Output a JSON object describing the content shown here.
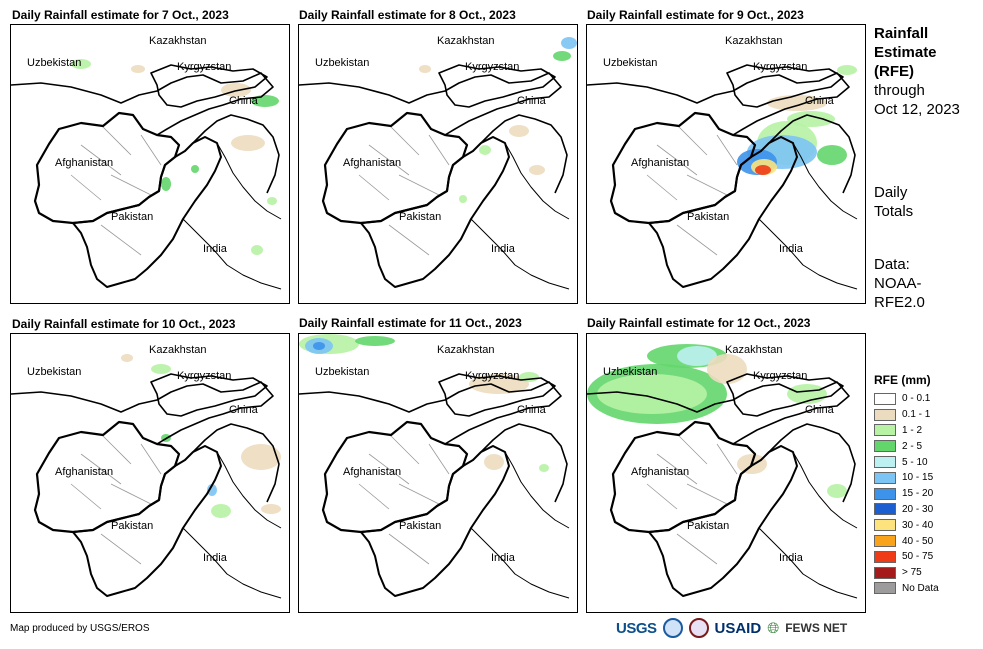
{
  "panels": [
    {
      "title": "Daily Rainfall estimate for 7 Oct., 2023",
      "labels": {
        "kazakhstan": "Kazakhstan",
        "kyrgyzstan": "Kyrgyzstan",
        "uzbekistan": "Uzbekistan",
        "china": "China",
        "afghanistan": "Afghanistan",
        "pakistan": "Pakistan",
        "india": "India"
      }
    },
    {
      "title": "Daily Rainfall estimate for 8 Oct., 2023",
      "labels": {
        "kazakhstan": "Kazakhstan",
        "kyrgyzstan": "Kyrgyzstan",
        "uzbekistan": "Uzbekistan",
        "china": "China",
        "afghanistan": "Afghanistan",
        "pakistan": "Pakistan",
        "india": "India"
      }
    },
    {
      "title": "Daily Rainfall estimate for 9 Oct., 2023",
      "labels": {
        "kazakhstan": "Kazakhstan",
        "kyrgyzstan": "Kyrgyzstan",
        "uzbekistan": "Uzbekistan",
        "china": "China",
        "afghanistan": "Afghanistan",
        "pakistan": "Pakistan",
        "india": "India"
      }
    },
    {
      "title": "Daily Rainfall estimate for 10 Oct., 2023",
      "labels": {
        "kazakhstan": "Kazakhstan",
        "kyrgyzstan": "Kyrgyzstan",
        "uzbekistan": "Uzbekistan",
        "china": "China",
        "afghanistan": "Afghanistan",
        "pakistan": "Pakistan",
        "india": "India"
      }
    },
    {
      "title": "Daily Rainfall estimate for 11 Oct., 2023",
      "labels": {
        "kazakhstan": "Kazakhstan",
        "kyrgyzstan": "Kyrgyzstan",
        "uzbekistan": "Uzbekistan",
        "china": "China",
        "afghanistan": "Afghanistan",
        "pakistan": "Pakistan",
        "india": "India"
      }
    },
    {
      "title": "Daily Rainfall estimate for 12 Oct., 2023",
      "labels": {
        "kazakhstan": "Kazakhstan",
        "kyrgyzstan": "Kyrgyzstan",
        "uzbekistan": "Uzbekistan",
        "china": "China",
        "afghanistan": "Afghanistan",
        "pakistan": "Pakistan",
        "india": "India"
      }
    }
  ],
  "side": {
    "title_lines": [
      "Rainfall",
      "Estimate",
      "(RFE)"
    ],
    "subtitle_lines": [
      "through",
      "Oct 12, 2023"
    ],
    "totals_lines": [
      "Daily",
      "Totals"
    ],
    "data_lines": [
      "Data:",
      "NOAA-",
      "RFE2.0"
    ]
  },
  "legend": {
    "title": "RFE (mm)",
    "items": [
      {
        "label": "0 - 0.1",
        "color": "#ffffff"
      },
      {
        "label": "0.1 - 1",
        "color": "#ecdcbf"
      },
      {
        "label": "1 - 2",
        "color": "#b7f2a5"
      },
      {
        "label": "2 - 5",
        "color": "#63d66b"
      },
      {
        "label": "5 - 10",
        "color": "#bdf0f0"
      },
      {
        "label": "10 - 15",
        "color": "#7cc4f4"
      },
      {
        "label": "15 - 20",
        "color": "#3d92ea"
      },
      {
        "label": "20 - 30",
        "color": "#1c5fd1"
      },
      {
        "label": "30 - 40",
        "color": "#fce37e"
      },
      {
        "label": "40 - 50",
        "color": "#f9a21b"
      },
      {
        "label": "50 - 75",
        "color": "#ef3b17"
      },
      {
        "label": "> 75",
        "color": "#a51a1a"
      },
      {
        "label": "No Data",
        "color": "#9c9c9c"
      }
    ]
  },
  "footer": {
    "credit": "Map produced by USGS/EROS",
    "logos": {
      "usgs": "USGS",
      "usaid": "USAID",
      "fews": "FEWS NET"
    },
    "logo_icons": [
      "usgs-logo",
      "noaa-seal",
      "us-seal",
      "usaid-logo",
      "fewsnet-globe"
    ]
  }
}
